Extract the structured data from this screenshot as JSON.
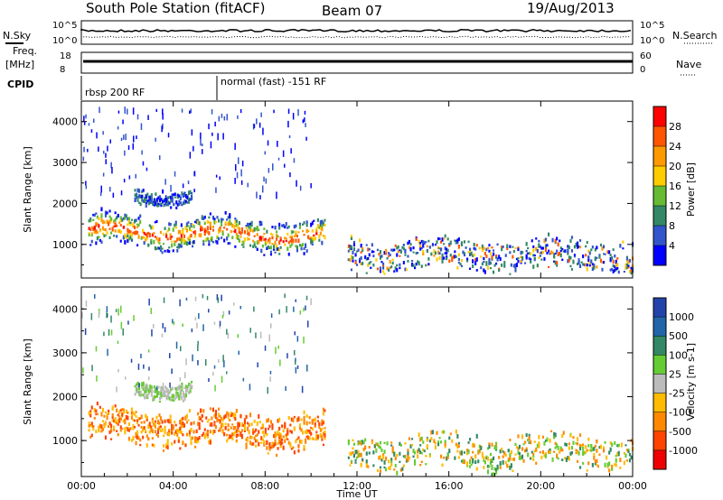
{
  "header": {
    "station": "South Pole Station (fitACF)",
    "beam": "Beam 07",
    "date": "19/Aug/2013"
  },
  "noise_panel": {
    "left_label": "N.Sky",
    "right_label": "N.Search",
    "left_ticks": [
      "10^5",
      "10^0"
    ],
    "right_ticks": [
      "10^5",
      "10^0"
    ]
  },
  "freq_panel": {
    "left_label_line1": "Freq.",
    "left_label_line2": "[MHz]",
    "right_label": "Nave",
    "left_ticks": [
      "18",
      "8"
    ],
    "right_ticks": [
      "60",
      "0"
    ]
  },
  "cpid_panel": {
    "label": "CPID",
    "segments": [
      "rbsp 200 RF",
      "normal (fast) -151 RF"
    ]
  },
  "chart_data": [
    {
      "type": "heatmap",
      "title": "",
      "xlabel": "Time UT",
      "ylabel": "Slant Range [km]",
      "xlim": [
        0,
        24
      ],
      "ylim": [
        180,
        4500
      ],
      "x_tick_labels": [
        "00:00",
        "04:00",
        "08:00",
        "12:00",
        "16:00",
        "20:00",
        "00:00"
      ],
      "y_tick_labels": [
        "1000",
        "2000",
        "3000",
        "4000"
      ],
      "colorbar": {
        "label": "Power [dB]",
        "tick_labels": [
          "28",
          "24",
          "20",
          "16",
          "12",
          "8",
          "4"
        ],
        "colors": [
          "#ff0000",
          "#ff5500",
          "#ff9900",
          "#ffcc00",
          "#66bb33",
          "#338866",
          "#3355cc",
          "#0000ff"
        ]
      },
      "echo_regions": [
        {
          "t0": 0.3,
          "t1": 10.6,
          "r0": 900,
          "r1": 1700,
          "level": "high"
        },
        {
          "t0": 2.3,
          "t1": 4.8,
          "r0": 1950,
          "r1": 2350,
          "level": "low"
        },
        {
          "t0": 11.6,
          "t1": 24,
          "r0": 300,
          "r1": 1100,
          "level": "low-mid"
        }
      ]
    },
    {
      "type": "heatmap",
      "xlabel": "Time UT",
      "ylabel": "Slant Range [km]",
      "xlim": [
        0,
        24
      ],
      "ylim": [
        180,
        4500
      ],
      "x_tick_labels": [
        "00:00",
        "04:00",
        "08:00",
        "12:00",
        "16:00",
        "20:00",
        "00:00"
      ],
      "y_tick_labels": [
        "1000",
        "2000",
        "3000",
        "4000"
      ],
      "colorbar": {
        "label": "Velocity [m s-1]",
        "tick_labels": [
          "1000",
          "500",
          "100",
          "25",
          "-25",
          "-100",
          "-500",
          "-1000"
        ],
        "colors": [
          "#2244aa",
          "#2266aa",
          "#338866",
          "#66cc33",
          "#bbbbbb",
          "#ffbb00",
          "#ff8800",
          "#ff4400",
          "#ee0000"
        ]
      },
      "echo_regions": [
        {
          "t0": 0.3,
          "t1": 10.6,
          "r0": 900,
          "r1": 1700,
          "velocity": "negative"
        },
        {
          "t0": 2.3,
          "t1": 4.8,
          "r0": 1950,
          "r1": 2350,
          "velocity": "near-zero"
        },
        {
          "t0": 11.6,
          "t1": 24,
          "r0": 300,
          "r1": 1100,
          "velocity": "mixed"
        }
      ]
    }
  ],
  "colors": {
    "axis": "#000000",
    "background": "#ffffff"
  }
}
